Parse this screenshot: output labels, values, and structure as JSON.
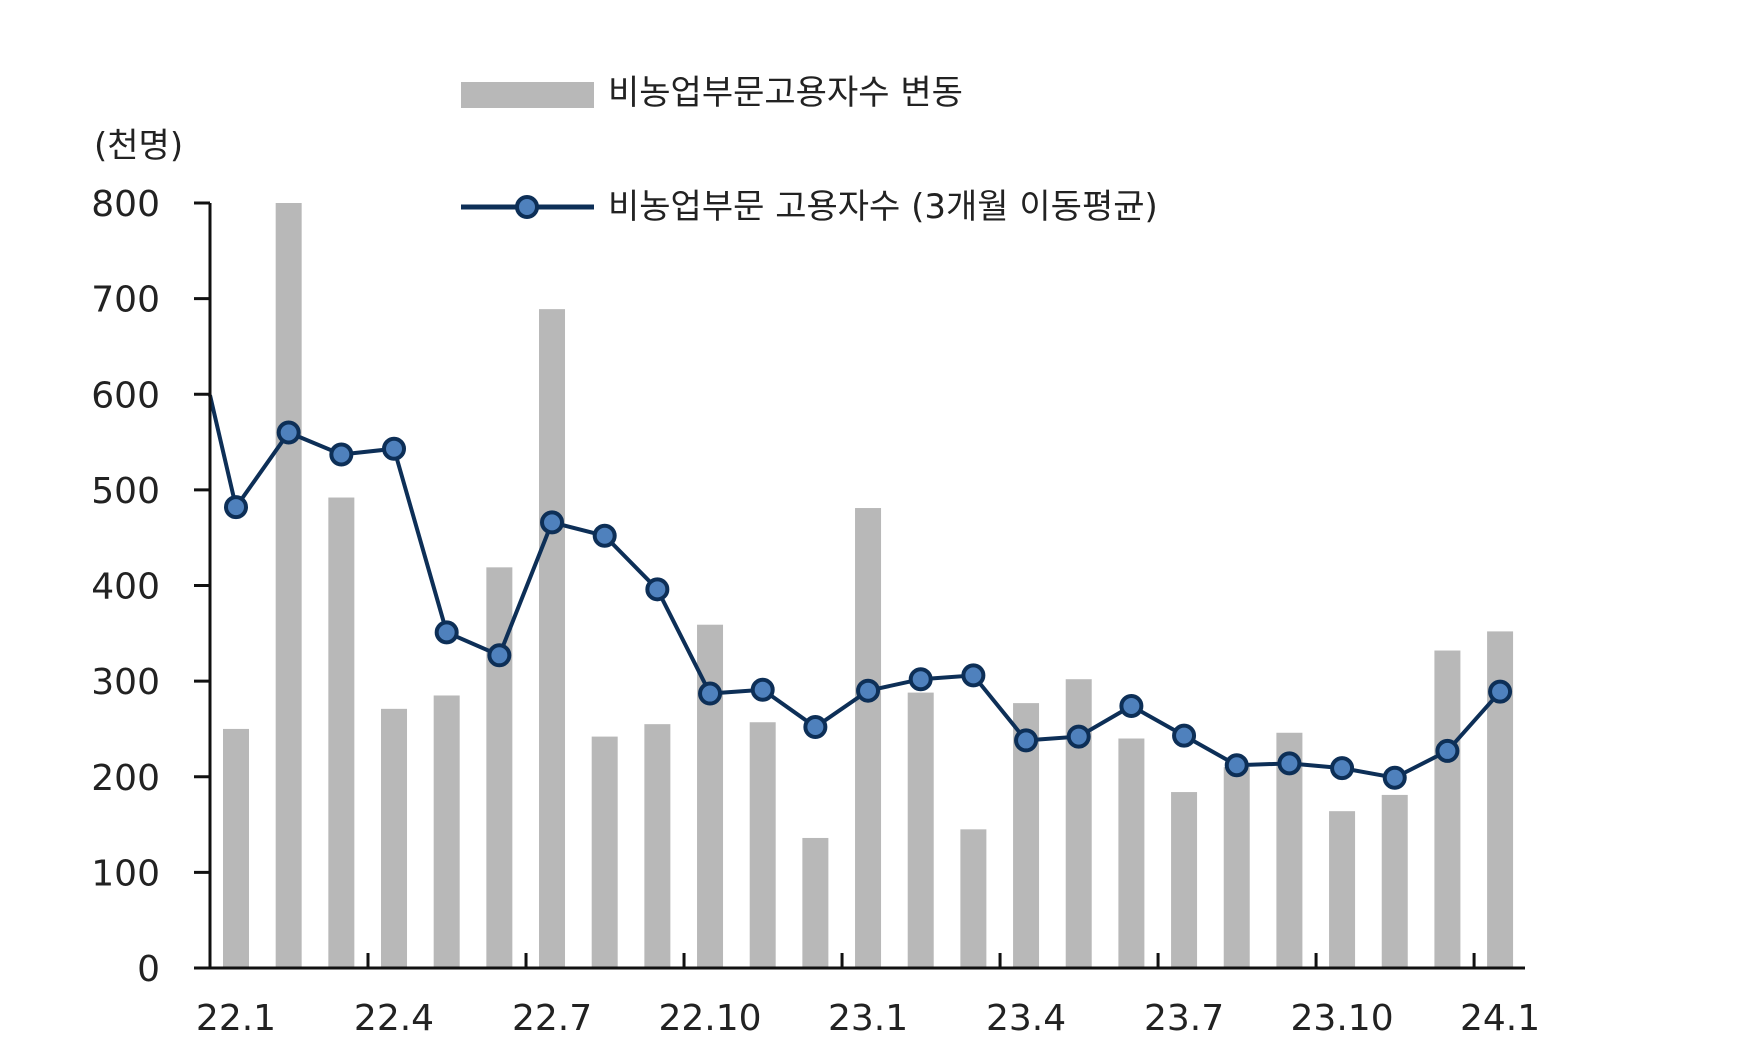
{
  "chart_data": {
    "type": "bar",
    "ylabel": "(천명)",
    "ylim": [
      0,
      800
    ],
    "yticks": [
      "0",
      "100",
      "200",
      "300",
      "400",
      "500",
      "600",
      "700",
      "800"
    ],
    "categories": [
      "22.1",
      "22.2",
      "22.3",
      "22.4",
      "22.5",
      "22.6",
      "22.7",
      "22.8",
      "22.9",
      "22.10",
      "22.11",
      "22.12",
      "23.1",
      "23.2",
      "23.3",
      "23.4",
      "23.5",
      "23.6",
      "23.7",
      "23.8",
      "23.9",
      "23.10",
      "23.11",
      "23.12",
      "24.1"
    ],
    "xtick_labels": [
      "22.1",
      "22.4",
      "22.7",
      "22.10",
      "23.1",
      "23.4",
      "23.7",
      "23.10",
      "24.1"
    ],
    "series": [
      {
        "name": "비농업부문고용자수 변동",
        "type": "bar",
        "color": "#b8b8b8",
        "values": [
          250,
          800,
          492,
          271,
          285,
          419,
          689,
          242,
          255,
          359,
          257,
          136,
          481,
          288,
          145,
          277,
          302,
          240,
          184,
          210,
          246,
          164,
          181,
          332,
          352
        ]
      },
      {
        "name": "비농업부문 고용자수 (3개월 이동평균)",
        "type": "line",
        "color": "#0d2f57",
        "marker_color": "#4f81bd",
        "prior_value": 599,
        "values": [
          482,
          560,
          537,
          543,
          351,
          327,
          466,
          452,
          396,
          287,
          291,
          252,
          290,
          302,
          306,
          238,
          242,
          274,
          243,
          212,
          214,
          209,
          199,
          227,
          289
        ]
      }
    ],
    "legend": "top"
  }
}
